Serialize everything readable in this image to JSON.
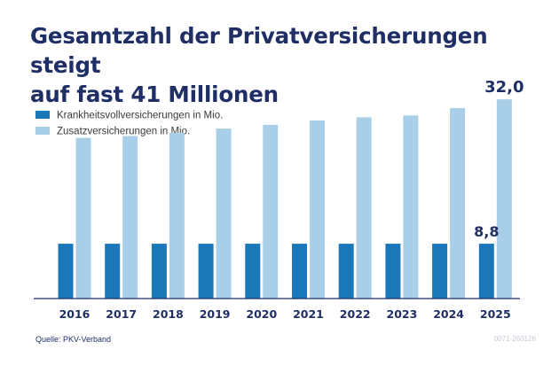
{
  "chart_data": {
    "type": "bar",
    "title_lines": [
      "Gesamtzahl der Privatversicherungen steigt",
      "auf fast 41 Millionen"
    ],
    "categories": [
      "2016",
      "2017",
      "2018",
      "2019",
      "2020",
      "2021",
      "2022",
      "2023",
      "2024",
      "2025"
    ],
    "series": [
      {
        "name": "Krankheitsvollversicherungen in Mio.",
        "color": "#1a77b8",
        "values": [
          8.8,
          8.8,
          8.8,
          8.8,
          8.8,
          8.8,
          8.8,
          8.8,
          8.8,
          8.8
        ]
      },
      {
        "name": "Zusatzversicherungen in Mio.",
        "color": "#a9cfe8",
        "values": [
          25.8,
          26.1,
          26.6,
          27.3,
          27.9,
          28.6,
          29.1,
          29.4,
          30.6,
          32.0
        ]
      }
    ],
    "data_labels": [
      {
        "series": 0,
        "category": "2025",
        "text": "8,8"
      },
      {
        "series": 1,
        "category": "2025",
        "text": "32,0"
      }
    ],
    "ylim": [
      0,
      34
    ],
    "grid": false,
    "legend_position": "top-left",
    "xlabel": "",
    "ylabel": ""
  },
  "source": "Quelle: PKV-Verband",
  "code": "0071-260126",
  "colors": {
    "title": "#1f2f66",
    "axis": "#1f2f66"
  }
}
